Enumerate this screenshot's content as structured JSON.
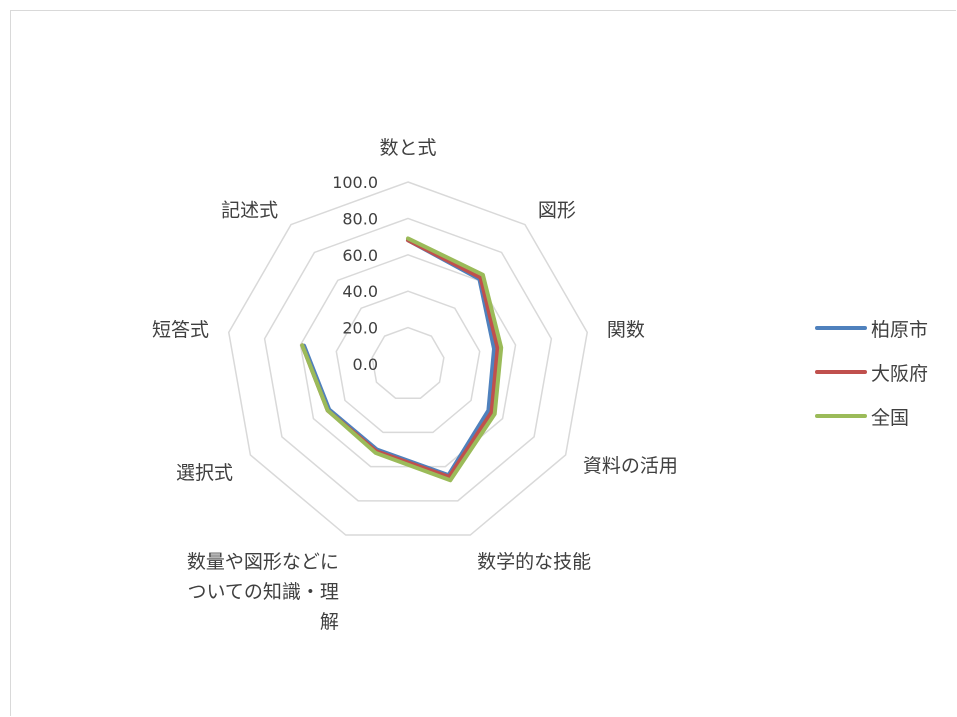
{
  "chart_data": {
    "type": "radar",
    "categories": [
      "数と式",
      "図形",
      "関数",
      "資料の活用",
      "数学的な技能",
      "数量や図形などについての知識・理解",
      "選択式",
      "短答式",
      "記述式"
    ],
    "category_label_lines": [
      [
        "数と式"
      ],
      [
        "図形"
      ],
      [
        "関数"
      ],
      [
        "資料の活用"
      ],
      [
        "数学的な技能"
      ],
      [
        "数量や図形などに",
        "ついての知識・理",
        "解"
      ],
      [
        "選択式"
      ],
      [
        "短答式"
      ],
      [
        "記述式"
      ]
    ],
    "rlim": [
      0,
      100
    ],
    "ticks": [
      "0.0",
      "20.0",
      "40.0",
      "60.0",
      "80.0",
      "100.0"
    ],
    "grid": true,
    "legend_position": "right",
    "series": [
      {
        "name": "柏原市",
        "color": "#4f81bd",
        "values": [
          68,
          61,
          48,
          51,
          65,
          50,
          50,
          58,
          0
        ]
      },
      {
        "name": "大阪府",
        "color": "#c0504d",
        "values": [
          68,
          62,
          50,
          53,
          66,
          51,
          51,
          59,
          0
        ]
      },
      {
        "name": "全国",
        "color": "#9bbb59",
        "values": [
          69,
          64,
          52,
          55,
          68,
          52,
          51,
          59,
          0
        ]
      }
    ]
  }
}
